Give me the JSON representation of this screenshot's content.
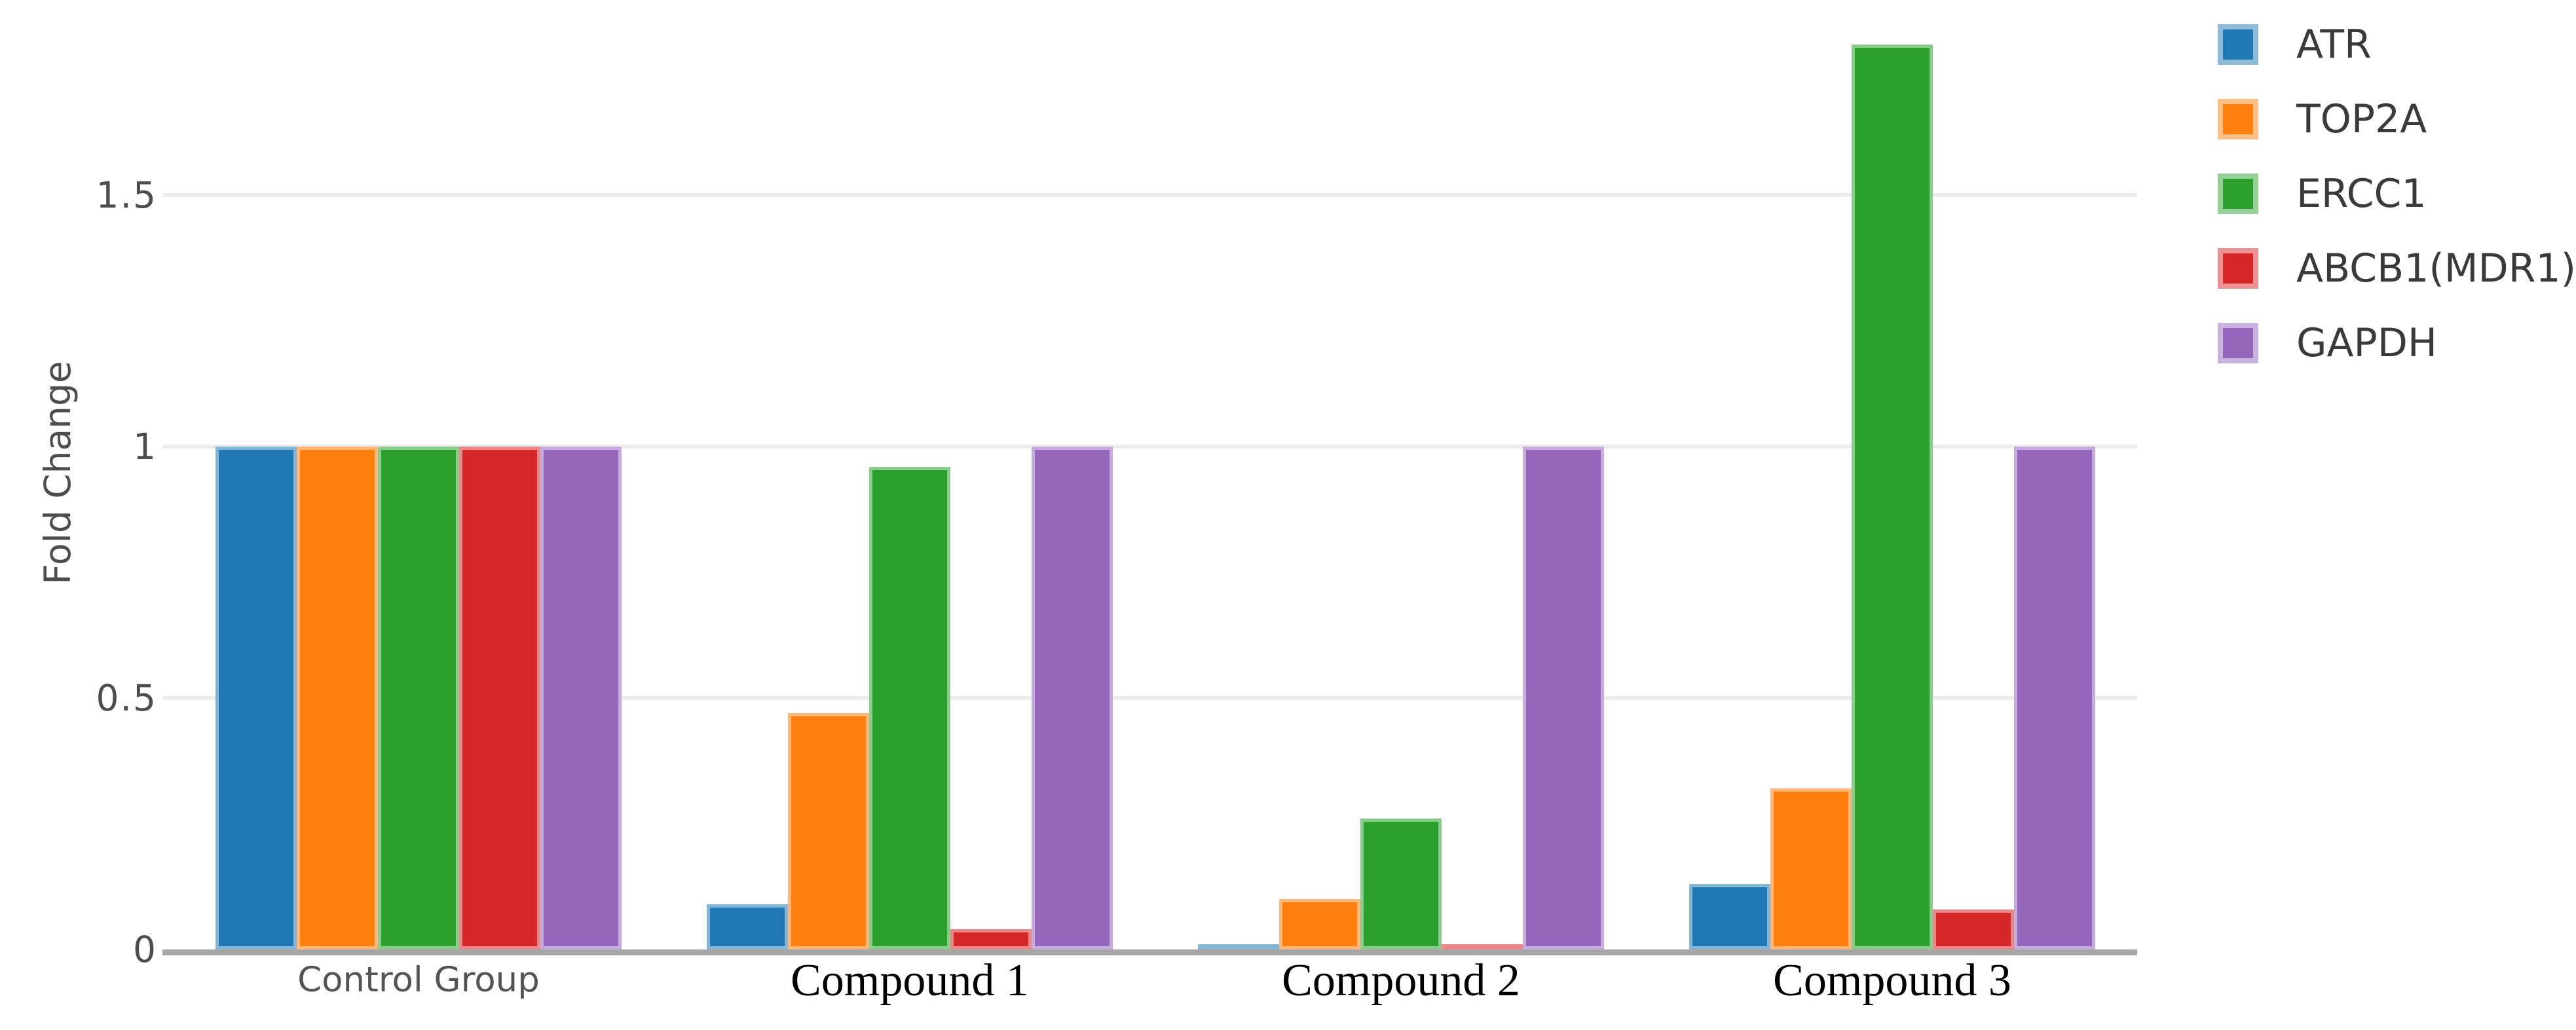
{
  "chart_data": {
    "type": "bar",
    "title": "",
    "xlabel": "",
    "ylabel": "Fold Change",
    "categories": [
      "Control Group",
      "Compound 1",
      "Compound 2",
      "Compound 3"
    ],
    "series": [
      {
        "name": "ATR",
        "color": "#1f77b4",
        "values": [
          1,
          0.09,
          0.01,
          0.13
        ]
      },
      {
        "name": "TOP2A",
        "color": "#ff7f0e",
        "values": [
          1,
          0.47,
          0.1,
          0.32
        ]
      },
      {
        "name": "ERCC1",
        "color": "#2ca02c",
        "values": [
          1,
          0.96,
          0.26,
          1.8
        ]
      },
      {
        "name": "ABCB1(MDR1)",
        "color": "#d62728",
        "values": [
          1,
          0.04,
          0.01,
          0.08
        ]
      },
      {
        "name": "GAPDH",
        "color": "#9467bd",
        "values": [
          1,
          1.0,
          1.0,
          1.0
        ]
      }
    ],
    "yticks": [
      0,
      0.5,
      1,
      1.5
    ],
    "ytick_labels": [
      "0",
      "0.5",
      "1",
      "1.5"
    ],
    "ylim": [
      0,
      1.89
    ],
    "grid": true,
    "legend_position": "outside-top-right",
    "category_label_styles": [
      "sans",
      "serif",
      "serif",
      "serif"
    ]
  },
  "colors": {
    "gridline": "#ececec",
    "axis_line": "#a6a6a6",
    "tick_text": "#4d4d4d",
    "legend_text": "#3a3a3a"
  }
}
